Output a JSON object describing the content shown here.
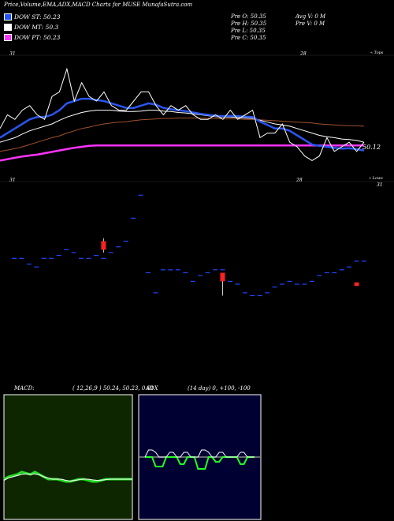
{
  "header": {
    "title": "Price,Volume,EMA,ADX,MACD Charts for MUSE MunafaSutra.com"
  },
  "legend": [
    {
      "label": "DOW ST: 50.23",
      "color": "#2255ff"
    },
    {
      "label": "DOW MT: 50.3",
      "color": "#ffffff"
    },
    {
      "label": "DOW PT: 50.23",
      "color": "#ff33ff"
    }
  ],
  "price_info": {
    "col1": [
      "Pre  O: 50.35",
      "Pre  H: 50.35",
      "Pre  L: 50.35",
      "Pre  C: 50.35"
    ],
    "col2": [
      "Avg V: 0  M",
      "Pre  V: 0  M"
    ]
  },
  "labels": {
    "tl_day": "31",
    "tmid_day": "28",
    "top_tag": "« Tops",
    "bl_day": "31",
    "bmid_day": "28",
    "br_day": "31",
    "lower_tag": "« Lows",
    "last_price": "50.12"
  },
  "macd": {
    "label": "MACD:",
    "params": "( 12,26,9 ) 50.24,  50.23,  0.01"
  },
  "adx": {
    "label": "ADX",
    "params": "(14  day) 0,  +100,  -100"
  },
  "colors": {
    "ema_short": "#2a55ee",
    "ema_mid": "#ffffff",
    "ema_long": "#ff33ff",
    "ema_brown": "#a0522d",
    "candle_down": "#ff2020",
    "candle_flat": "#2244ff",
    "macd_bg": "#0d2600",
    "adx_bg": "#000033"
  },
  "chart_data": [
    {
      "type": "line",
      "name": "price-ema",
      "y_price_series": {
        "close": [
          50.6,
          50.9,
          50.8,
          51.0,
          51.1,
          50.9,
          50.8,
          51.3,
          51.4,
          51.9,
          51.2,
          51.6,
          51.3,
          51.2,
          51.4,
          51.1,
          51.0,
          51.0,
          51.2,
          51.4,
          51.4,
          51.1,
          50.9,
          51.1,
          51.0,
          51.1,
          50.9,
          50.8,
          50.8,
          50.9,
          50.8,
          51.0,
          50.8,
          50.9,
          51.0,
          50.4,
          50.5,
          50.5,
          50.7,
          50.3,
          50.2,
          50.0,
          49.9,
          50.0,
          50.4,
          50.1,
          50.2,
          50.3,
          50.1,
          50.3
        ],
        "ema_short": [
          50.4,
          50.5,
          50.6,
          50.7,
          50.8,
          50.85,
          50.85,
          50.9,
          51.0,
          51.15,
          51.2,
          51.25,
          51.25,
          51.22,
          51.2,
          51.15,
          51.1,
          51.05,
          51.05,
          51.1,
          51.15,
          51.12,
          51.05,
          51.02,
          51.0,
          50.98,
          50.95,
          50.92,
          50.9,
          50.88,
          50.87,
          50.88,
          50.87,
          50.86,
          50.85,
          50.75,
          50.68,
          50.6,
          50.6,
          50.55,
          50.45,
          50.35,
          50.25,
          50.22,
          50.2,
          50.18,
          50.16,
          50.17,
          50.15,
          50.12
        ],
        "ema_mid": [
          50.3,
          50.35,
          50.4,
          50.48,
          50.55,
          50.6,
          50.65,
          50.7,
          50.78,
          50.85,
          50.9,
          50.95,
          50.98,
          51.0,
          51.0,
          51.0,
          50.98,
          50.97,
          50.97,
          50.98,
          51.0,
          51.0,
          50.98,
          50.97,
          50.95,
          50.94,
          50.92,
          50.9,
          50.88,
          50.86,
          50.85,
          50.85,
          50.84,
          50.83,
          50.82,
          50.78,
          50.74,
          50.7,
          50.68,
          50.65,
          50.6,
          50.55,
          50.5,
          50.45,
          50.42,
          50.4,
          50.37,
          50.36,
          50.34,
          50.3
        ],
        "ema_brown": [
          50.1,
          50.13,
          50.16,
          50.2,
          50.25,
          50.3,
          50.35,
          50.4,
          50.44,
          50.5,
          50.55,
          50.6,
          50.63,
          50.67,
          50.7,
          50.72,
          50.74,
          50.75,
          50.77,
          50.79,
          50.8,
          50.81,
          50.82,
          50.82,
          50.83,
          50.83,
          50.83,
          50.83,
          50.82,
          50.82,
          50.81,
          50.81,
          50.81,
          50.8,
          50.8,
          50.79,
          50.78,
          50.77,
          50.76,
          50.75,
          50.74,
          50.73,
          50.72,
          50.7,
          50.69,
          50.68,
          50.67,
          50.66,
          50.66,
          50.65
        ],
        "ema_long": [
          49.9,
          49.93,
          49.96,
          49.99,
          50.01,
          50.03,
          50.06,
          50.09,
          50.12,
          50.15,
          50.18,
          50.2,
          50.22,
          50.23,
          50.23,
          50.23,
          50.23,
          50.23,
          50.23,
          50.23,
          50.23,
          50.23,
          50.23,
          50.23,
          50.23,
          50.23,
          50.23,
          50.23,
          50.23,
          50.23,
          50.23,
          50.23,
          50.23,
          50.23,
          50.23,
          50.23,
          50.23,
          50.23,
          50.23,
          50.23,
          50.23,
          50.23,
          50.23,
          50.23,
          50.23,
          50.23,
          50.23,
          50.23,
          50.23,
          50.23
        ]
      },
      "ylim": [
        49.7,
        52.2
      ]
    },
    {
      "type": "scatter",
      "name": "lows-candles",
      "values": [
        50.6,
        50.6,
        50.5,
        50.45,
        50.6,
        50.6,
        50.65,
        50.75,
        50.7,
        50.6,
        50.6,
        50.65,
        50.6,
        50.7,
        50.8,
        50.9,
        51.3,
        51.7,
        50.35,
        50.0,
        50.4,
        50.4,
        50.4,
        50.35,
        50.2,
        50.3,
        50.35,
        50.4,
        50.4,
        50.2,
        50.15,
        50.0,
        49.95,
        49.95,
        50.0,
        50.1,
        50.15,
        50.2,
        50.15,
        50.15,
        50.2,
        50.3,
        50.35,
        50.35,
        50.4,
        50.45,
        50.55,
        50.55
      ],
      "down_candles": [
        {
          "index": 6,
          "open": 50.9,
          "close": 50.75,
          "high": 50.95,
          "low": 50.7
        },
        {
          "index": 14,
          "open": 50.35,
          "close": 50.2,
          "high": 50.35,
          "low": 49.95
        },
        {
          "index": 23,
          "open": 50.18,
          "close": 50.12,
          "high": 50.18,
          "low": 50.12
        }
      ],
      "ylim": [
        49.6,
        51.8
      ]
    },
    {
      "type": "line",
      "name": "macd",
      "series": [
        {
          "values": [
            0.0,
            0.01,
            0.015,
            0.02,
            0.03,
            0.025,
            0.02,
            0.03,
            0.02,
            0.01,
            0.0,
            0.0,
            0.0,
            -0.005,
            -0.01,
            -0.01,
            -0.005,
            0.0,
            0.0,
            -0.005,
            -0.01,
            -0.01,
            -0.005,
            0.0,
            0.0,
            0.0,
            0.0,
            0.0,
            0.0,
            0.0
          ]
        },
        {
          "values": [
            -0.005,
            0.005,
            0.01,
            0.015,
            0.02,
            0.022,
            0.02,
            0.022,
            0.018,
            0.01,
            0.005,
            0.0,
            0.0,
            0.0,
            -0.005,
            -0.008,
            -0.005,
            -0.002,
            0.0,
            0.0,
            -0.003,
            -0.005,
            -0.004,
            -0.002,
            0.0,
            0.0,
            0.0,
            0.0,
            0.0,
            0.0
          ]
        }
      ],
      "ylim": [
        -1,
        1
      ]
    },
    {
      "type": "line",
      "name": "adx",
      "series": [
        {
          "values": [
            0,
            0,
            0,
            -20,
            -20,
            -20,
            0,
            0,
            0,
            0,
            -15,
            -15,
            0,
            0,
            0,
            -25,
            -25,
            -25,
            0,
            0,
            -10,
            -10,
            0,
            0,
            0,
            0,
            0,
            -15,
            -15,
            0,
            0,
            0
          ]
        },
        {
          "values": [
            0,
            15,
            15,
            10,
            0,
            0,
            0,
            10,
            10,
            0,
            0,
            10,
            10,
            0,
            0,
            0,
            15,
            15,
            10,
            0,
            0,
            10,
            10,
            0,
            0,
            0,
            0,
            10,
            10,
            0,
            0,
            0
          ]
        }
      ],
      "ylim": [
        -100,
        100
      ]
    }
  ]
}
